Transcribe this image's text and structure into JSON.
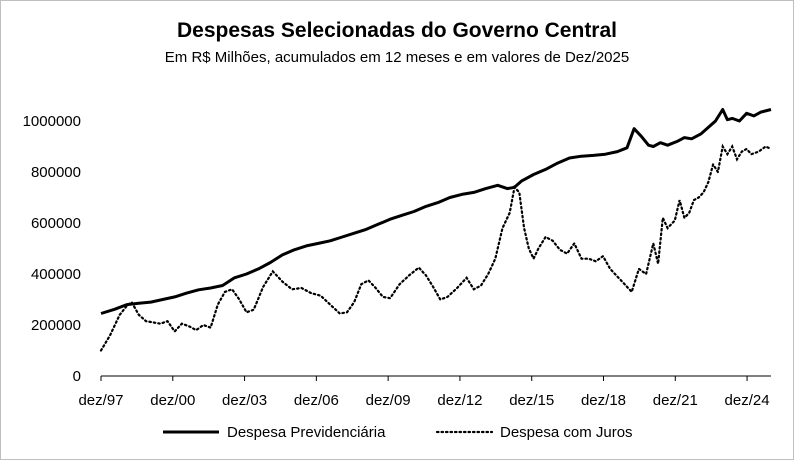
{
  "chart_data": {
    "type": "line",
    "title": "Despesas Selecionadas do Governo Central",
    "subtitle": "Em R$ Milhões, acumulados em 12 meses e em valores de Dez/2025",
    "xlabel": "",
    "ylabel": "",
    "ylim": [
      0,
      1000000
    ],
    "yticks": [
      0,
      200000,
      400000,
      600000,
      800000,
      1000000
    ],
    "ytick_labels": [
      "0",
      "200000",
      "400000",
      "600000",
      "800000",
      "1000000"
    ],
    "xlim": [
      1997.92,
      2025.92
    ],
    "xticks": [
      1997.92,
      2000.92,
      2003.92,
      2006.92,
      2009.92,
      2012.92,
      2015.92,
      2018.92,
      2021.92,
      2024.92
    ],
    "xtick_labels": [
      "dez/97",
      "dez/00",
      "dez/03",
      "dez/06",
      "dez/09",
      "dez/12",
      "dez/15",
      "dez/18",
      "dez/21",
      "dez/24"
    ],
    "grid": false,
    "legend_position": "bottom",
    "series": [
      {
        "name": "Despesa Previdenciária",
        "style": "solid",
        "color": "#000000",
        "x": [
          1997.92,
          1998.5,
          1999.0,
          1999.5,
          2000.0,
          2000.5,
          2001.0,
          2001.5,
          2002.0,
          2002.5,
          2003.0,
          2003.5,
          2004.0,
          2004.5,
          2005.0,
          2005.5,
          2006.0,
          2006.5,
          2007.0,
          2007.5,
          2008.0,
          2008.5,
          2009.0,
          2009.5,
          2010.0,
          2010.5,
          2011.0,
          2011.5,
          2012.0,
          2012.5,
          2013.0,
          2013.5,
          2014.0,
          2014.5,
          2014.9,
          2015.2,
          2015.5,
          2016.0,
          2016.5,
          2017.0,
          2017.5,
          2018.0,
          2018.5,
          2019.0,
          2019.5,
          2019.9,
          2020.2,
          2020.5,
          2020.8,
          2021.0,
          2021.3,
          2021.6,
          2022.0,
          2022.3,
          2022.6,
          2023.0,
          2023.3,
          2023.6,
          2023.9,
          2024.1,
          2024.3,
          2024.6,
          2024.9,
          2025.2,
          2025.5,
          2025.92
        ],
        "values": [
          245000,
          262000,
          280000,
          285000,
          290000,
          300000,
          310000,
          325000,
          338000,
          345000,
          355000,
          385000,
          400000,
          420000,
          445000,
          475000,
          495000,
          510000,
          520000,
          530000,
          545000,
          560000,
          575000,
          595000,
          615000,
          630000,
          645000,
          665000,
          680000,
          700000,
          712000,
          720000,
          735000,
          748000,
          735000,
          740000,
          765000,
          790000,
          810000,
          835000,
          855000,
          862000,
          865000,
          870000,
          880000,
          895000,
          970000,
          940000,
          905000,
          900000,
          915000,
          905000,
          920000,
          935000,
          930000,
          950000,
          975000,
          1000000,
          1045000,
          1005000,
          1010000,
          1000000,
          1030000,
          1020000,
          1035000,
          1045000
        ]
      },
      {
        "name": "Despesa com Juros",
        "style": "dotted",
        "color": "#000000",
        "x": [
          1997.92,
          1998.3,
          1998.7,
          1999.0,
          1999.2,
          1999.5,
          1999.8,
          2000.1,
          2000.4,
          2000.7,
          2001.0,
          2001.3,
          2001.6,
          2001.9,
          2002.2,
          2002.5,
          2002.8,
          2003.1,
          2003.4,
          2003.7,
          2004.0,
          2004.3,
          2004.7,
          2005.1,
          2005.5,
          2005.9,
          2006.3,
          2006.7,
          2007.1,
          2007.5,
          2007.9,
          2008.2,
          2008.5,
          2008.8,
          2009.1,
          2009.4,
          2009.7,
          2010.0,
          2010.4,
          2010.8,
          2011.2,
          2011.5,
          2011.8,
          2012.1,
          2012.4,
          2012.8,
          2013.2,
          2013.5,
          2013.8,
          2014.1,
          2014.4,
          2014.7,
          2015.0,
          2015.2,
          2015.4,
          2015.6,
          2015.8,
          2016.0,
          2016.2,
          2016.5,
          2016.8,
          2017.1,
          2017.4,
          2017.7,
          2018.0,
          2018.3,
          2018.6,
          2018.9,
          2019.2,
          2019.5,
          2019.8,
          2020.1,
          2020.4,
          2020.7,
          2021.0,
          2021.2,
          2021.4,
          2021.6,
          2021.9,
          2022.1,
          2022.3,
          2022.5,
          2022.7,
          2022.9,
          2023.1,
          2023.3,
          2023.5,
          2023.7,
          2023.9,
          2024.1,
          2024.3,
          2024.5,
          2024.7,
          2024.9,
          2025.1,
          2025.4,
          2025.7,
          2025.92
        ],
        "values": [
          100000,
          160000,
          240000,
          275000,
          290000,
          240000,
          215000,
          210000,
          205000,
          215000,
          175000,
          205000,
          195000,
          180000,
          200000,
          190000,
          280000,
          330000,
          340000,
          300000,
          250000,
          260000,
          350000,
          410000,
          370000,
          340000,
          345000,
          325000,
          315000,
          280000,
          245000,
          250000,
          290000,
          360000,
          375000,
          345000,
          310000,
          305000,
          360000,
          395000,
          425000,
          395000,
          350000,
          300000,
          310000,
          345000,
          385000,
          340000,
          355000,
          400000,
          460000,
          580000,
          640000,
          740000,
          720000,
          580000,
          500000,
          460000,
          500000,
          545000,
          530000,
          495000,
          480000,
          520000,
          460000,
          460000,
          450000,
          470000,
          420000,
          390000,
          360000,
          330000,
          420000,
          400000,
          520000,
          440000,
          620000,
          580000,
          610000,
          690000,
          620000,
          640000,
          690000,
          700000,
          720000,
          760000,
          830000,
          800000,
          900000,
          870000,
          900000,
          850000,
          880000,
          890000,
          870000,
          880000,
          900000,
          890000
        ]
      }
    ]
  }
}
